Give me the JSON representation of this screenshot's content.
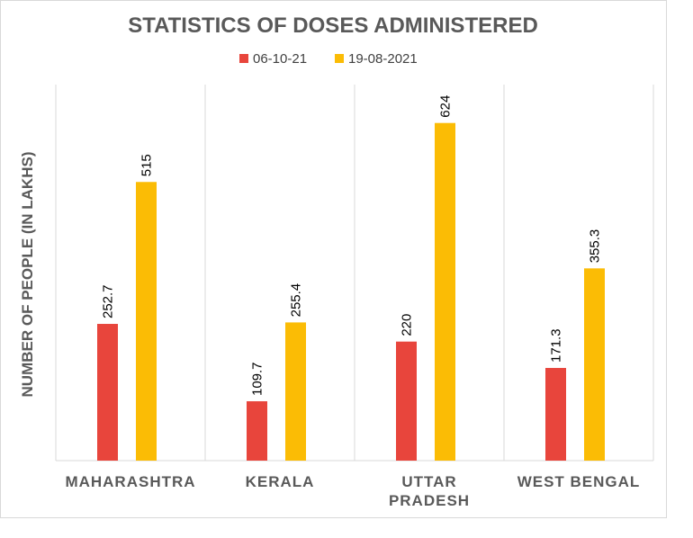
{
  "chart_data": {
    "type": "bar",
    "title": "STATISTICS OF DOSES ADMINISTERED",
    "ylabel": "NUMBER OF PEOPLE (IN LAKHS)",
    "xlabel": "",
    "categories": [
      [
        "MAHARASHTRA"
      ],
      [
        "KERALA"
      ],
      [
        "UTTAR",
        "PRADESH"
      ],
      [
        "WEST BENGAL"
      ]
    ],
    "series": [
      {
        "name": "06-10-21",
        "color": "#e8453c",
        "values": [
          252.7,
          109.7,
          220,
          171.3
        ]
      },
      {
        "name": "19-08-2021",
        "color": "#fbbc05",
        "values": [
          515,
          255.4,
          624,
          355.3
        ]
      }
    ],
    "ylim": [
      0,
      695
    ],
    "grid": false,
    "legend_position": "top"
  }
}
